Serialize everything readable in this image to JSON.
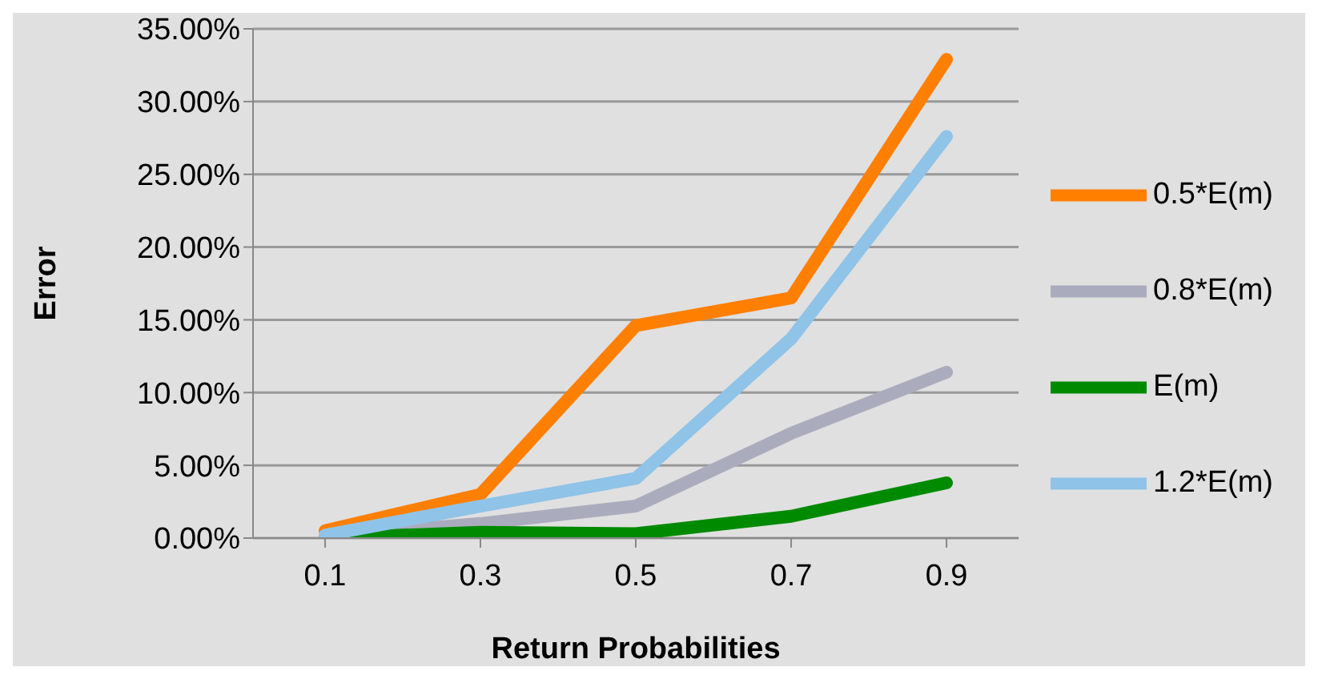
{
  "chart_data": {
    "type": "line",
    "xlabel": "Return  Probabilities",
    "ylabel": "Error",
    "categories": [
      "0.1",
      "0.3",
      "0.5",
      "0.7",
      "0.9"
    ],
    "series": [
      {
        "name": "0.5*E(m)",
        "color": "#ff7f00",
        "values": [
          0.5,
          3.0,
          14.6,
          16.5,
          32.9
        ]
      },
      {
        "name": "0.8*E(m)",
        "color": "#aaacbe",
        "values": [
          0.1,
          1.0,
          2.2,
          7.2,
          11.4
        ]
      },
      {
        "name": "E(m)",
        "color": "#008a00",
        "values": [
          0,
          0.4,
          0.3,
          1.5,
          3.8
        ]
      },
      {
        "name": "1.2*E(m)",
        "color": "#8fc3e8",
        "values": [
          0.2,
          2.2,
          4.1,
          13.7,
          27.6
        ]
      }
    ],
    "ylim": [
      0,
      35
    ],
    "yticks": [
      {
        "value": 0,
        "label": "0.00%"
      },
      {
        "value": 5,
        "label": "5.00%"
      },
      {
        "value": 10,
        "label": "10.00%"
      },
      {
        "value": 15,
        "label": "15.00%"
      },
      {
        "value": 20,
        "label": "20.00%"
      },
      {
        "value": 25,
        "label": "25.00%"
      },
      {
        "value": 30,
        "label": "30.00%"
      },
      {
        "value": 35,
        "label": "35.00%"
      }
    ],
    "grid": "y",
    "legend": "right",
    "marker": "none",
    "line_style": "solid"
  }
}
